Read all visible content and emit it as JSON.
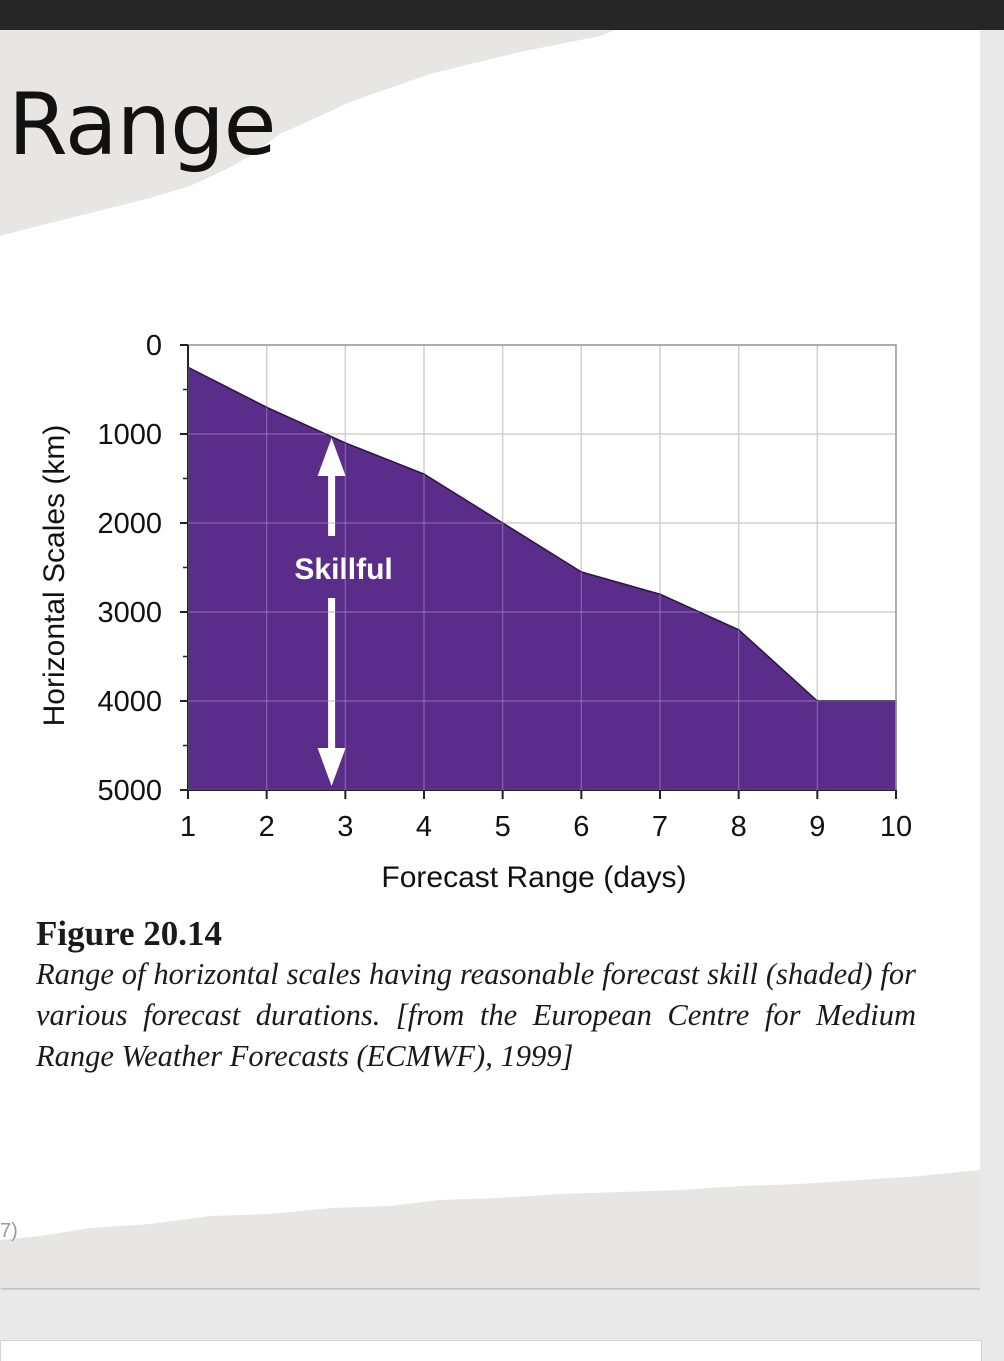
{
  "slide": {
    "title": "Range",
    "page_number": "7)"
  },
  "caption": {
    "title": "Figure 20.14",
    "body": "Range of horizontal scales having reasonable forecast skill (shaded) for various forecast durations. [from the European Centre for Medium Range Weather Forecasts (ECMWF), 1999]"
  },
  "colors": {
    "fill": "#5b2d8a",
    "grid": "#d0d0d0",
    "axis": "#222222",
    "arrow": "#ffffff"
  },
  "chart_data": {
    "type": "area",
    "title": "",
    "xlabel": "Forecast Range (days)",
    "ylabel": "Horizontal Scales (km)",
    "x": [
      1,
      2,
      3,
      4,
      5,
      6,
      7,
      8,
      9,
      10
    ],
    "y": [
      250,
      700,
      1100,
      1450,
      2000,
      2550,
      2800,
      3200,
      4000,
      4000
    ],
    "xlim": [
      1,
      10
    ],
    "ylim": [
      0,
      5000
    ],
    "y_inverted": true,
    "x_ticks": [
      "1",
      "2",
      "3",
      "4",
      "5",
      "6",
      "7",
      "8",
      "9",
      "10"
    ],
    "y_ticks": [
      "0",
      "1000",
      "2000",
      "3000",
      "4000",
      "5000"
    ],
    "y_tick_values": [
      0,
      1000,
      2000,
      3000,
      4000,
      5000
    ],
    "grid": true,
    "annotation": {
      "text": "Skillful",
      "x": 2.8,
      "y_from": 1000,
      "y_to": 5000
    }
  }
}
